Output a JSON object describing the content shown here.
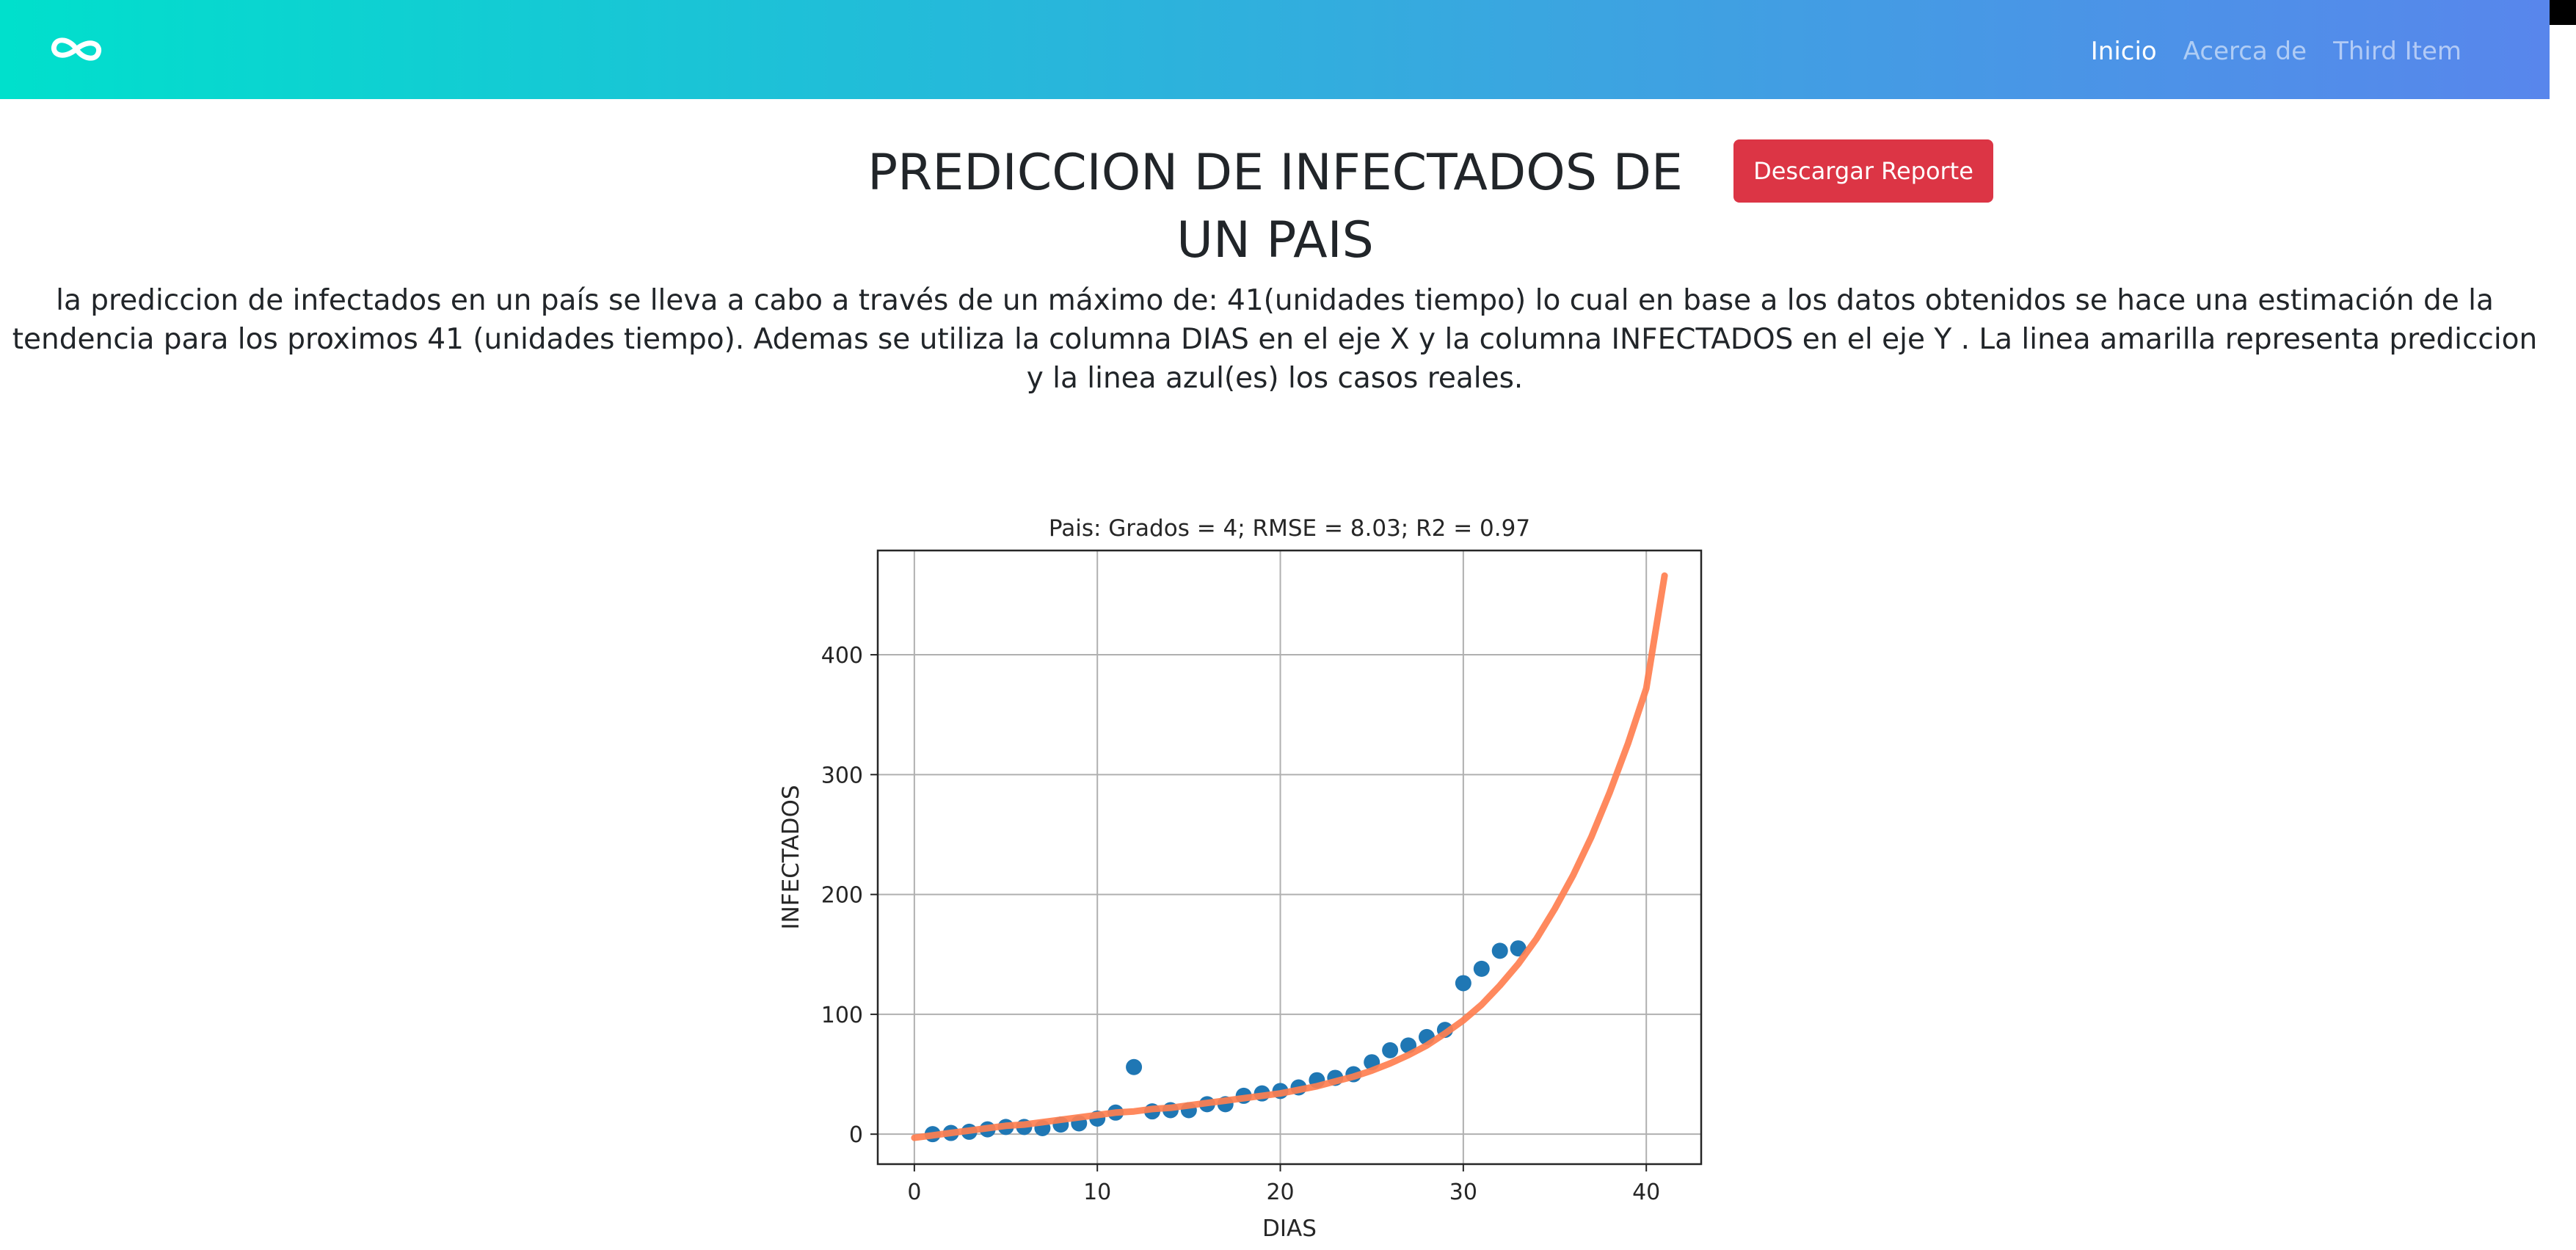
{
  "navbar": {
    "brand_icon": "infinity-icon",
    "gradient_start": "#00e0cc",
    "gradient_end": "#5886ec",
    "links": [
      {
        "label": "Inicio",
        "active": true
      },
      {
        "label": "Acerca de",
        "active": false
      },
      {
        "label": "Third Item",
        "active": false
      }
    ]
  },
  "page": {
    "title": "PREDICCION DE INFECTADOS DE UN PAIS",
    "download_label": "Descargar Reporte",
    "download_color": "#dc3545",
    "description": "la prediccion de infectados en un país se lleva a cabo a través de un máximo de: 41(unidades tiempo) lo cual en base a los datos obtenidos se hace una estimación de la tendencia para los proximos 41 (unidades tiempo). Ademas se utiliza la columna DIAS en el eje X y la columna INFECTADOS en el eje Y . La linea amarilla representa prediccion y la linea azul(es) los casos reales."
  },
  "chart_data": {
    "type": "scatter",
    "title": "Pais:  Grados = 4; RMSE = 8.03; R2 = 0.97",
    "xlabel": "DIAS",
    "ylabel": "INFECTADOS",
    "xlim": [
      -2,
      43
    ],
    "ylim": [
      -25,
      487
    ],
    "xticks": [
      0,
      10,
      20,
      30,
      40
    ],
    "yticks": [
      0,
      100,
      200,
      300,
      400
    ],
    "grid": true,
    "series": [
      {
        "kind": "scatter",
        "color": "#1f77b4",
        "x": [
          1,
          2,
          3,
          4,
          5,
          6,
          7,
          8,
          9,
          10,
          11,
          12,
          13,
          14,
          15,
          16,
          17,
          18,
          19,
          20,
          21,
          22,
          23,
          24,
          25,
          26,
          27,
          28,
          29,
          30,
          31,
          32,
          33
        ],
        "y": [
          0,
          1,
          2,
          4,
          6,
          6,
          5,
          8,
          9,
          13,
          18,
          56,
          19,
          20,
          20,
          25,
          25,
          32,
          34,
          36,
          39,
          45,
          47,
          50,
          60,
          70,
          74,
          81,
          87,
          126,
          138,
          153,
          155
        ]
      },
      {
        "kind": "line",
        "color": "#ff7f50",
        "x": [
          0,
          1,
          2,
          3,
          4,
          5,
          6,
          7,
          8,
          9,
          10,
          11,
          12,
          13,
          14,
          15,
          16,
          17,
          18,
          19,
          20,
          21,
          22,
          23,
          24,
          25,
          26,
          27,
          28,
          29,
          30,
          31,
          32,
          33,
          34,
          35,
          36,
          37,
          38,
          39,
          40,
          41
        ],
        "y": [
          -3,
          -1,
          1,
          3,
          5,
          7,
          8,
          10,
          12,
          14,
          16,
          18,
          19,
          21,
          22,
          24,
          26,
          28,
          30,
          32,
          34,
          37,
          40,
          44,
          48,
          53,
          59,
          66,
          74,
          84,
          95,
          108,
          124,
          142,
          163,
          188,
          216,
          248,
          285,
          326,
          372,
          466
        ]
      }
    ]
  }
}
